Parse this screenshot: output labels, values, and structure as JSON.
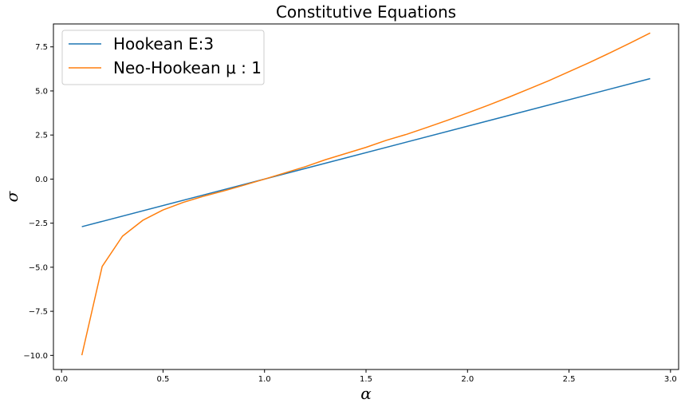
{
  "chart_data": {
    "type": "line",
    "title": "Constitutive Equations",
    "xlabel": "α",
    "ylabel": "σ",
    "xlim": [
      -0.04,
      3.04
    ],
    "ylim": [
      -10.8,
      8.8
    ],
    "xticks": [
      0.0,
      0.5,
      1.0,
      1.5,
      2.0,
      2.5,
      3.0
    ],
    "xtick_labels": [
      "0.0",
      "0.5",
      "1.0",
      "1.5",
      "2.0",
      "2.5",
      "3.0"
    ],
    "yticks": [
      -10.0,
      -7.5,
      -5.0,
      -2.5,
      0.0,
      2.5,
      5.0,
      7.5
    ],
    "ytick_labels": [
      "−10.0",
      "−7.5",
      "−5.0",
      "−2.5",
      "0.0",
      "2.5",
      "5.0",
      "7.5"
    ],
    "grid": false,
    "legend_position": "top-left",
    "series": [
      {
        "name": "Hookean E:3",
        "color": "#1f77b4",
        "x": [
          0.1,
          2.9
        ],
        "y": [
          -2.7,
          5.7
        ]
      },
      {
        "name": "Neo-Hookean μ : 1",
        "color": "#ff7f0e",
        "x": [
          0.1,
          0.2,
          0.3,
          0.4,
          0.5,
          0.6,
          0.7,
          0.8,
          0.9,
          1.0,
          1.1,
          1.2,
          1.3,
          1.4,
          1.5,
          1.6,
          1.7,
          1.8,
          1.9,
          2.0,
          2.1,
          2.2,
          2.3,
          2.4,
          2.5,
          2.6,
          2.7,
          2.8,
          2.9
        ],
        "y": [
          -9.99,
          -4.96,
          -3.24,
          -2.34,
          -1.75,
          -1.32,
          -0.97,
          -0.67,
          -0.34,
          0.0,
          0.35,
          0.7,
          1.1,
          1.45,
          1.8,
          2.2,
          2.54,
          2.93,
          3.33,
          3.75,
          4.18,
          4.63,
          5.1,
          5.58,
          6.09,
          6.61,
          7.15,
          7.71,
          8.29
        ]
      }
    ]
  }
}
